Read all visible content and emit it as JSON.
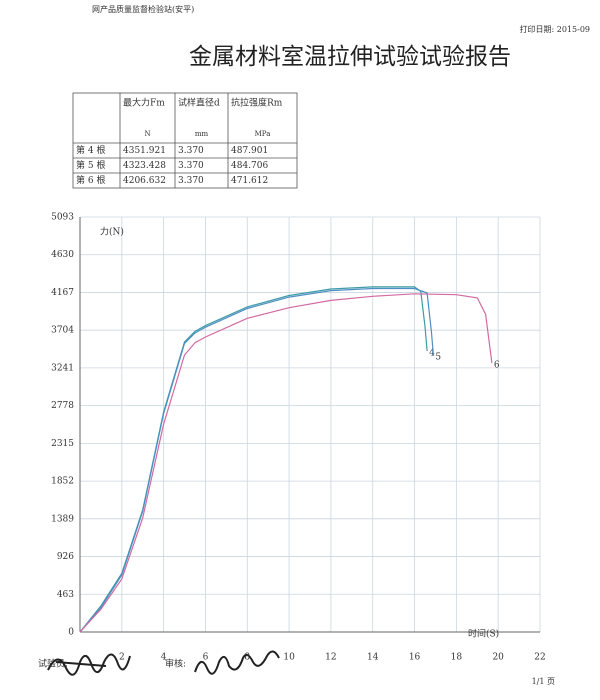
{
  "header": {
    "station": "网产品质量监督检验站(安平)",
    "print_date": "打印日期: 2015-09",
    "title": "金属材料室温拉伸试验试验报告"
  },
  "table": {
    "header": [
      "最大力Fm",
      "试样直径d",
      "抗拉强度Rm"
    ],
    "units": [
      "N",
      "mm",
      "MPa"
    ],
    "rows": [
      [
        "第 4 根",
        "4351.921",
        "3.370",
        "487.901"
      ],
      [
        "第 5 根",
        "4323.428",
        "3.370",
        "484.706"
      ],
      [
        "第 6 根",
        "4206.632",
        "3.370",
        "471.612"
      ]
    ]
  },
  "chart_data": {
    "type": "line",
    "x_label": "时间(S)",
    "y_label": "力(N)",
    "xlim": [
      0,
      22
    ],
    "ylim": [
      0,
      5093
    ],
    "xticks": [
      2,
      4,
      6,
      8,
      10,
      12,
      14,
      16,
      18,
      20,
      22
    ],
    "yticks": [
      0,
      463,
      926,
      1389,
      1852,
      2315,
      2778,
      3241,
      3704,
      4167,
      4630,
      5093
    ],
    "grid": true,
    "series": [
      {
        "name": "4",
        "color": "#3d9aa6",
        "x": [
          0,
          1,
          2,
          3,
          4,
          5,
          5.5,
          6,
          8,
          10,
          12,
          14,
          16,
          16.3,
          16.5,
          16.6
        ],
        "values": [
          0,
          320,
          720,
          1500,
          2700,
          3560,
          3690,
          3760,
          3990,
          4130,
          4210,
          4235,
          4235,
          4180,
          3750,
          3450
        ]
      },
      {
        "name": "5",
        "color": "#4d8fc4",
        "x": [
          0,
          1,
          2,
          3,
          4,
          5,
          5.5,
          6,
          8,
          10,
          12,
          14,
          16,
          16.6,
          16.8,
          16.9
        ],
        "values": [
          0,
          300,
          700,
          1480,
          2680,
          3540,
          3670,
          3740,
          3970,
          4110,
          4190,
          4215,
          4215,
          4160,
          3700,
          3400
        ]
      },
      {
        "name": "6",
        "color": "#d26aa2",
        "x": [
          0,
          1,
          2,
          3,
          4,
          5,
          5.5,
          6,
          8,
          10,
          12,
          14,
          16,
          18,
          19,
          19.4,
          19.6,
          19.7
        ],
        "values": [
          0,
          280,
          650,
          1400,
          2550,
          3400,
          3550,
          3620,
          3850,
          3980,
          4070,
          4120,
          4150,
          4140,
          4100,
          3900,
          3500,
          3300
        ]
      }
    ]
  },
  "footer": {
    "tester": "试验员:",
    "reviewer": "审核:",
    "page": "1/1 页"
  }
}
